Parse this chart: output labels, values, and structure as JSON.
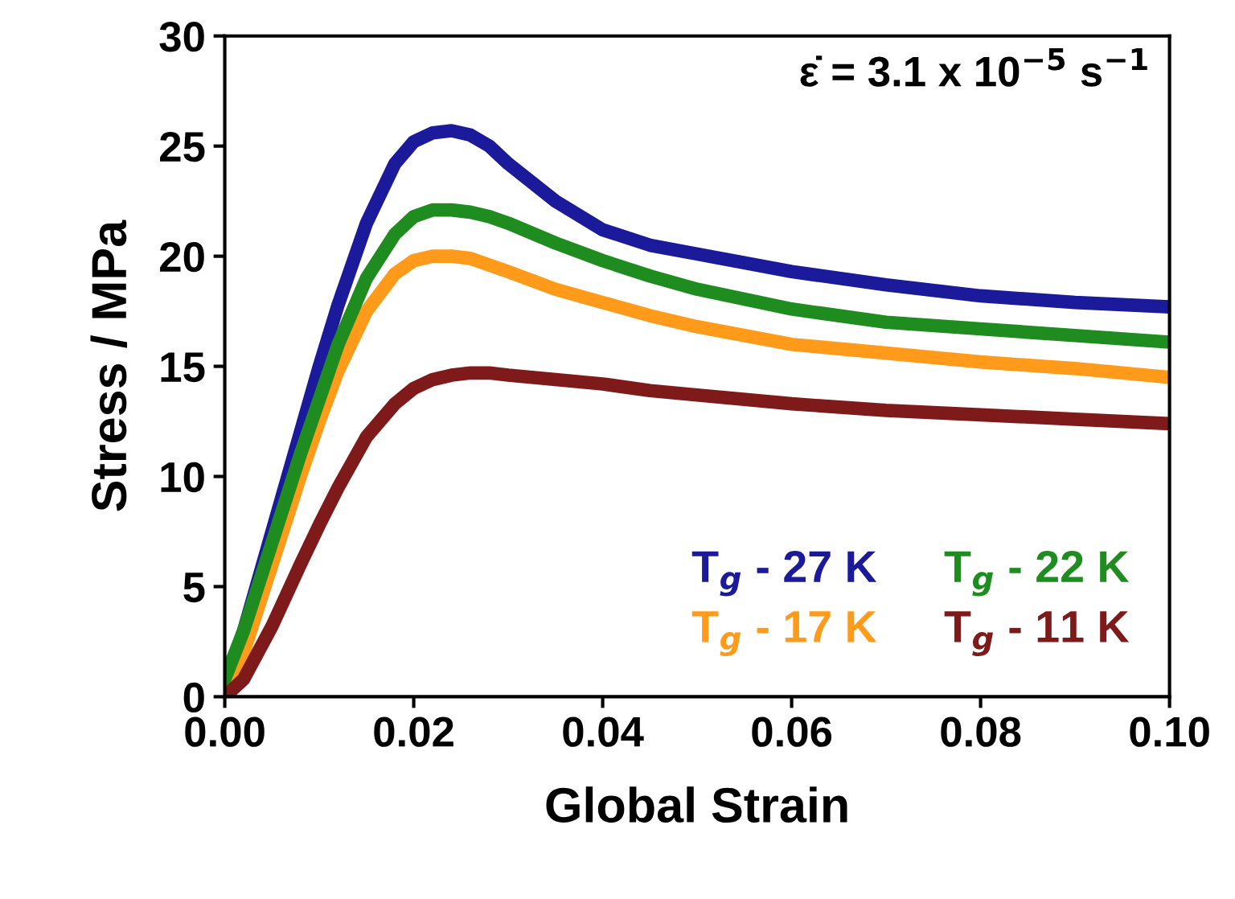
{
  "chart_data": {
    "type": "line",
    "xlabel": "Global Strain",
    "ylabel": "Stress / MPa",
    "annotations": [
      "ε̇ = 3.1 x 10$^{−5}$ s$^{−1}$"
    ],
    "x": [
      0,
      0.002,
      0.005,
      0.008,
      0.01,
      0.012,
      0.015,
      0.018,
      0.02,
      0.022,
      0.024,
      0.026,
      0.028,
      0.03,
      0.035,
      0.04,
      0.045,
      0.05,
      0.06,
      0.07,
      0.08,
      0.09,
      0.1
    ],
    "series": [
      {
        "name": "T$_{g}$ - 27 K",
        "color": "#1a1a9a",
        "values": [
          0.5,
          3,
          7.5,
          12,
          15,
          17.8,
          21.5,
          24.2,
          25.2,
          25.6,
          25.7,
          25.5,
          25,
          24.2,
          22.5,
          21.2,
          20.5,
          20.1,
          19.3,
          18.7,
          18.2,
          17.9,
          17.7
        ]
      },
      {
        "name": "T$_{g}$ - 17 K",
        "color": "#ff9a1a",
        "values": [
          0,
          2,
          6,
          10,
          12.5,
          14.8,
          17.5,
          19.2,
          19.8,
          20,
          20,
          19.9,
          19.6,
          19.3,
          18.5,
          17.9,
          17.3,
          16.8,
          16,
          15.6,
          15.2,
          14.9,
          14.5
        ]
      },
      {
        "name": "T$_{g}$ - 22 K",
        "color": "#1e8c1e",
        "values": [
          0.8,
          3,
          7,
          11,
          13.5,
          16,
          19,
          21,
          21.8,
          22.1,
          22.1,
          22,
          21.8,
          21.5,
          20.6,
          19.8,
          19.1,
          18.5,
          17.6,
          17,
          16.7,
          16.4,
          16.1
        ]
      },
      {
        "name": "T$_{g}$ - 11 K",
        "color": "#7f1a1a",
        "values": [
          0,
          0.8,
          3.2,
          6,
          7.8,
          9.5,
          11.8,
          13.3,
          14,
          14.4,
          14.6,
          14.7,
          14.7,
          14.6,
          14.4,
          14.2,
          13.9,
          13.7,
          13.3,
          13,
          12.8,
          12.6,
          12.4
        ]
      }
    ],
    "xlim": [
      0,
      0.1
    ],
    "ylim": [
      0,
      30
    ],
    "xticks": [
      {
        "value": 0,
        "label": "0.00"
      },
      {
        "value": 0.02,
        "label": "0.02"
      },
      {
        "value": 0.04,
        "label": "0.04"
      },
      {
        "value": 0.06,
        "label": "0.06"
      },
      {
        "value": 0.08,
        "label": "0.08"
      },
      {
        "value": 0.1,
        "label": "0.10"
      }
    ],
    "yticks": [
      0,
      5,
      10,
      15,
      20,
      25,
      30
    ],
    "legend": "bottom right",
    "grid": false,
    "marker": "none",
    "line_style": "solid"
  }
}
